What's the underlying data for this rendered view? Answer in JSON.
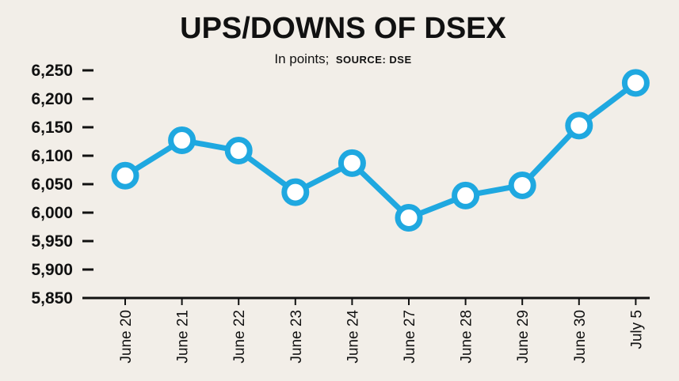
{
  "chart_data": {
    "type": "line",
    "title": "UPS/DOWNS OF DSEX",
    "subtitle": "In points;",
    "source": "SOURCE: DSE",
    "categories": [
      "June 20",
      "June 21",
      "June 22",
      "June 23",
      "June 24",
      "June 27",
      "June 28",
      "June 29",
      "June 30",
      "July 5"
    ],
    "values": [
      6065,
      6127,
      6109,
      6036,
      6087,
      5991,
      6030,
      6048,
      6153,
      6228
    ],
    "y_ticks": [
      "6,250",
      "6,200",
      "6,150",
      "6,100",
      "6,050",
      "6,000",
      "5,950",
      "5,900",
      "5,850"
    ],
    "ylim": [
      5850,
      6250
    ],
    "grid": false,
    "line_color": "#1fa8e0",
    "marker_fill": "#ffffff",
    "background": "#f2eee8"
  }
}
